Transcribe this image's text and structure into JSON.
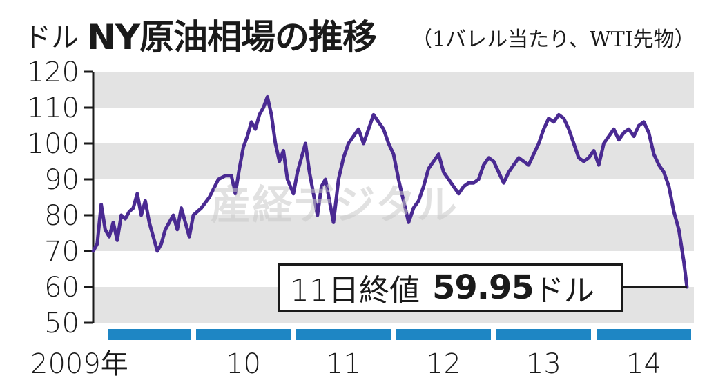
{
  "header": {
    "unit": "ドル",
    "title": "NY原油相場の推移",
    "subtitle": "（1バレル当たり、WTI先物）"
  },
  "watermark": "産経デジタル",
  "annotation": {
    "label": "11日終値",
    "value": "59.95",
    "unit": "ドル"
  },
  "colors": {
    "line": "#4a2a92",
    "band": "#e3e3e3",
    "year_bar": "#1e86c4"
  },
  "chart_data": {
    "type": "line",
    "title": "NY原油相場の推移",
    "ylabel": "ドル",
    "ylim": [
      50,
      120
    ],
    "yticks": [
      50,
      60,
      70,
      80,
      90,
      100,
      110,
      120
    ],
    "xlim": [
      2009.0,
      2015.0
    ],
    "year_segments": [
      {
        "start": 2009.0,
        "end": 2010.0,
        "label": "2009年"
      },
      {
        "start": 2010.0,
        "end": 2011.0,
        "label": "10"
      },
      {
        "start": 2011.0,
        "end": 2012.0,
        "label": "11"
      },
      {
        "start": 2012.0,
        "end": 2013.0,
        "label": "12"
      },
      {
        "start": 2013.0,
        "end": 2014.0,
        "label": "13"
      },
      {
        "start": 2014.0,
        "end": 2015.0,
        "label": "14"
      }
    ],
    "grid": "alternating horizontal bands",
    "series": [
      {
        "points": [
          [
            2009.0,
            70
          ],
          [
            2009.04,
            72
          ],
          [
            2009.08,
            83
          ],
          [
            2009.12,
            76
          ],
          [
            2009.16,
            74
          ],
          [
            2009.2,
            78
          ],
          [
            2009.24,
            73
          ],
          [
            2009.28,
            80
          ],
          [
            2009.32,
            79
          ],
          [
            2009.36,
            81
          ],
          [
            2009.4,
            82
          ],
          [
            2009.44,
            86
          ],
          [
            2009.48,
            80
          ],
          [
            2009.52,
            84
          ],
          [
            2009.56,
            78
          ],
          [
            2009.6,
            74
          ],
          [
            2009.64,
            70
          ],
          [
            2009.68,
            72
          ],
          [
            2009.72,
            76
          ],
          [
            2009.76,
            78
          ],
          [
            2009.8,
            80
          ],
          [
            2009.84,
            76
          ],
          [
            2009.88,
            82
          ],
          [
            2009.92,
            78
          ],
          [
            2009.96,
            74
          ],
          [
            2010.0,
            80
          ],
          [
            2010.08,
            82
          ],
          [
            2010.16,
            85
          ],
          [
            2010.25,
            90
          ],
          [
            2010.32,
            91
          ],
          [
            2010.38,
            91
          ],
          [
            2010.42,
            86
          ],
          [
            2010.46,
            93
          ],
          [
            2010.5,
            99
          ],
          [
            2010.54,
            102
          ],
          [
            2010.58,
            106
          ],
          [
            2010.62,
            104
          ],
          [
            2010.66,
            108
          ],
          [
            2010.7,
            110
          ],
          [
            2010.74,
            113
          ],
          [
            2010.78,
            108
          ],
          [
            2010.82,
            100
          ],
          [
            2010.86,
            95
          ],
          [
            2010.9,
            98
          ],
          [
            2010.94,
            90
          ],
          [
            2011.0,
            86
          ],
          [
            2011.04,
            92
          ],
          [
            2011.08,
            96
          ],
          [
            2011.12,
            100
          ],
          [
            2011.16,
            92
          ],
          [
            2011.2,
            86
          ],
          [
            2011.24,
            80
          ],
          [
            2011.28,
            88
          ],
          [
            2011.32,
            90
          ],
          [
            2011.36,
            84
          ],
          [
            2011.4,
            78
          ],
          [
            2011.45,
            90
          ],
          [
            2011.5,
            96
          ],
          [
            2011.55,
            100
          ],
          [
            2011.6,
            102
          ],
          [
            2011.65,
            104
          ],
          [
            2011.7,
            100
          ],
          [
            2011.75,
            104
          ],
          [
            2011.8,
            108
          ],
          [
            2011.85,
            106
          ],
          [
            2011.9,
            104
          ],
          [
            2011.95,
            100
          ],
          [
            2012.0,
            97
          ],
          [
            2012.05,
            90
          ],
          [
            2012.1,
            84
          ],
          [
            2012.15,
            78
          ],
          [
            2012.2,
            82
          ],
          [
            2012.25,
            84
          ],
          [
            2012.3,
            88
          ],
          [
            2012.35,
            93
          ],
          [
            2012.4,
            95
          ],
          [
            2012.45,
            97
          ],
          [
            2012.5,
            92
          ],
          [
            2012.55,
            90
          ],
          [
            2012.6,
            88
          ],
          [
            2012.65,
            86
          ],
          [
            2012.7,
            88
          ],
          [
            2012.75,
            89
          ],
          [
            2012.8,
            89
          ],
          [
            2012.85,
            90
          ],
          [
            2012.9,
            94
          ],
          [
            2012.95,
            96
          ],
          [
            2013.0,
            95
          ],
          [
            2013.05,
            92
          ],
          [
            2013.1,
            89
          ],
          [
            2013.15,
            92
          ],
          [
            2013.2,
            94
          ],
          [
            2013.25,
            96
          ],
          [
            2013.3,
            95
          ],
          [
            2013.35,
            94
          ],
          [
            2013.4,
            97
          ],
          [
            2013.45,
            100
          ],
          [
            2013.5,
            104
          ],
          [
            2013.55,
            107
          ],
          [
            2013.6,
            106
          ],
          [
            2013.65,
            108
          ],
          [
            2013.7,
            107
          ],
          [
            2013.75,
            104
          ],
          [
            2013.8,
            100
          ],
          [
            2013.85,
            96
          ],
          [
            2013.9,
            95
          ],
          [
            2013.95,
            96
          ],
          [
            2014.0,
            98
          ],
          [
            2014.05,
            94
          ],
          [
            2014.1,
            100
          ],
          [
            2014.15,
            102
          ],
          [
            2014.2,
            104
          ],
          [
            2014.25,
            101
          ],
          [
            2014.3,
            103
          ],
          [
            2014.35,
            104
          ],
          [
            2014.4,
            102
          ],
          [
            2014.45,
            105
          ],
          [
            2014.5,
            106
          ],
          [
            2014.55,
            103
          ],
          [
            2014.6,
            97
          ],
          [
            2014.65,
            94
          ],
          [
            2014.7,
            92
          ],
          [
            2014.75,
            88
          ],
          [
            2014.8,
            81
          ],
          [
            2014.85,
            76
          ],
          [
            2014.9,
            67
          ],
          [
            2014.93,
            60
          ]
        ]
      }
    ]
  }
}
